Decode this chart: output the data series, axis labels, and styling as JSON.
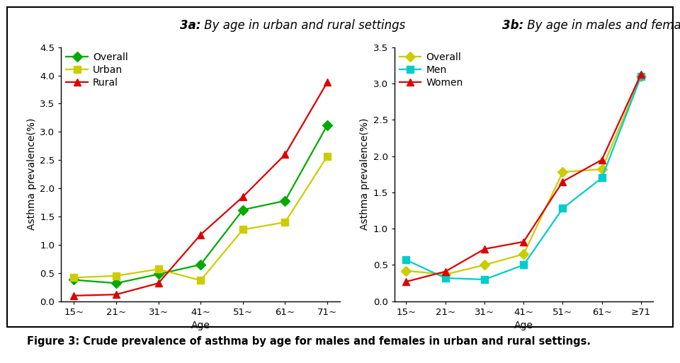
{
  "left_title_bold": "3a:",
  "left_title_rest": " By age in urban and rural settings",
  "right_title_bold": "3b:",
  "right_title_rest": " By age in males and females",
  "xlabel": "Age",
  "ylabel": "Asthma prevalence(%)",
  "figure_caption": "Figure 3: Crude prevalence of asthma by age for males and females in urban and rural settings.",
  "left_xtick_labels": [
    "15~",
    "21~",
    "31~",
    "41~",
    "51~",
    "61~",
    "71~"
  ],
  "right_xtick_labels": [
    "15~",
    "21~",
    "31~",
    "41~",
    "51~",
    "61~",
    "≥71"
  ],
  "left_ylim": [
    0,
    4.5
  ],
  "left_yticks": [
    0.0,
    0.5,
    1.0,
    1.5,
    2.0,
    2.5,
    3.0,
    3.5,
    4.0,
    4.5
  ],
  "right_ylim": [
    0,
    3.5
  ],
  "right_yticks": [
    0.0,
    0.5,
    1.0,
    1.5,
    2.0,
    2.5,
    3.0,
    3.5
  ],
  "left_series": {
    "Overall": {
      "values": [
        0.38,
        0.32,
        0.48,
        0.65,
        1.62,
        1.78,
        3.12
      ],
      "color": "#00aa00",
      "marker": "D"
    },
    "Urban": {
      "values": [
        0.42,
        0.45,
        0.57,
        0.37,
        1.27,
        1.4,
        2.57
      ],
      "color": "#cccc00",
      "marker": "s"
    },
    "Rural": {
      "values": [
        0.1,
        0.12,
        0.32,
        1.18,
        1.85,
        2.6,
        3.88
      ],
      "color": "#dd0000",
      "marker": "^"
    }
  },
  "right_series": {
    "Overall": {
      "values": [
        0.42,
        0.37,
        0.5,
        0.65,
        1.78,
        1.82,
        3.1
      ],
      "color": "#cccc00",
      "marker": "D"
    },
    "Men": {
      "values": [
        0.57,
        0.32,
        0.3,
        0.5,
        1.28,
        1.7,
        3.1
      ],
      "color": "#00cccc",
      "marker": "s"
    },
    "Women": {
      "values": [
        0.27,
        0.41,
        0.72,
        0.82,
        1.65,
        1.95,
        3.13
      ],
      "color": "#dd0000",
      "marker": "^"
    }
  },
  "title_fontsize": 12,
  "label_fontsize": 10,
  "tick_fontsize": 9.5,
  "legend_fontsize": 10,
  "caption_fontsize": 10.5,
  "linewidth": 1.6,
  "markersize": 7,
  "background_color": "#ffffff",
  "border_color": "#000000"
}
